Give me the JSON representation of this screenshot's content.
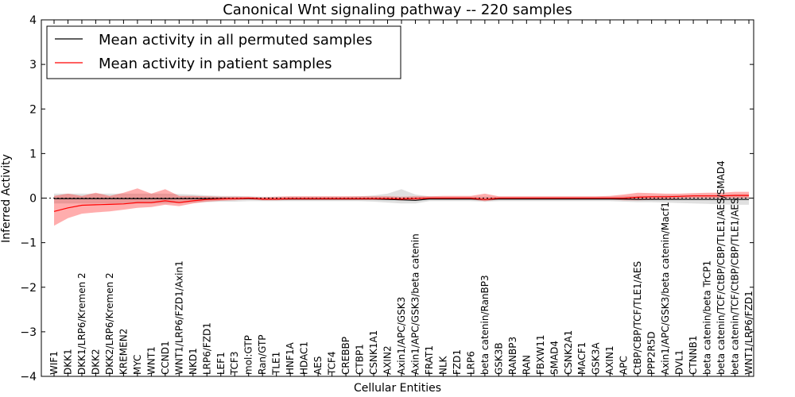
{
  "chart_data": {
    "type": "line",
    "title": "Canonical Wnt signaling pathway -- 220 samples",
    "xlabel": "Cellular Entities",
    "ylabel": "Inferred Activity",
    "ylim": [
      -4,
      4
    ],
    "yticks": [
      -4,
      -3,
      -2,
      -1,
      0,
      1,
      2,
      3,
      4
    ],
    "ytick_labels": [
      "−4",
      "−3",
      "−2",
      "−1",
      "0",
      "1",
      "2",
      "3",
      "4"
    ],
    "legend_position": "top-left",
    "categories": [
      "WIF1",
      "DKK1",
      "DKK1/LRP6/Kremen 2",
      "DKK2",
      "DKK2/LRP6/Kremen 2",
      "KREMEN2",
      "MYC",
      "WNT1",
      "CCND1",
      "WNT1/LRP6/FZD1/Axin1",
      "NKD1",
      "LRP6/FZD1",
      "LEF1",
      "TCF3",
      "mol:GTP",
      "Ran/GTP",
      "TLE1",
      "HNF1A",
      "HDAC1",
      "AES",
      "TCF4",
      "CREBBP",
      "CTBP1",
      "CSNK1A1",
      "AXIN2",
      "Axin1/APC/GSK3",
      "Axin1/APC/GSK3/beta catenin",
      "FRAT1",
      "NLK",
      "FZD1",
      "LRP6",
      "beta catenin/RanBP3",
      "GSK3B",
      "RANBP3",
      "RAN",
      "FBXW11",
      "SMAD4",
      "CSNK2A1",
      "MACF1",
      "GSK3A",
      "AXIN1",
      "APC",
      "CtBP/CBP/TCF/TLE1/AES",
      "PPP2R5D",
      "Axin1/APC/GSK3/beta catenin/Macf1",
      "DVL1",
      "CTNNB1",
      "beta catenin/beta TrCP1",
      "beta catenin/TCF/CtBP/CBP/TLE1/AES/SMAD4",
      "beta catenin/TCF/CtBP/CBP/TLE1/AES",
      "WNT1/LRP6/FZD1"
    ],
    "series": [
      {
        "name": "Mean activity in all permuted samples",
        "color": "#000000",
        "band_color": "#bbbbbb",
        "values": [
          -0.01,
          -0.01,
          -0.01,
          -0.01,
          -0.01,
          -0.01,
          -0.01,
          -0.01,
          -0.01,
          -0.01,
          -0.01,
          -0.01,
          -0.01,
          -0.01,
          -0.01,
          -0.02,
          -0.02,
          -0.02,
          -0.02,
          -0.02,
          -0.02,
          -0.02,
          -0.02,
          -0.02,
          -0.03,
          -0.04,
          -0.05,
          -0.02,
          -0.02,
          -0.02,
          -0.02,
          -0.03,
          -0.02,
          -0.02,
          -0.02,
          -0.02,
          -0.02,
          -0.02,
          -0.02,
          -0.02,
          -0.02,
          -0.02,
          -0.03,
          -0.03,
          -0.03,
          -0.03,
          -0.03,
          -0.03,
          -0.03,
          -0.03,
          -0.03
        ],
        "lower": [
          -0.12,
          -0.12,
          -0.12,
          -0.12,
          -0.12,
          -0.12,
          -0.12,
          -0.12,
          -0.12,
          -0.11,
          -0.1,
          -0.09,
          -0.08,
          -0.08,
          -0.07,
          -0.07,
          -0.07,
          -0.07,
          -0.07,
          -0.07,
          -0.07,
          -0.07,
          -0.07,
          -0.08,
          -0.1,
          -0.12,
          -0.12,
          -0.07,
          -0.07,
          -0.07,
          -0.07,
          -0.08,
          -0.07,
          -0.07,
          -0.07,
          -0.07,
          -0.07,
          -0.07,
          -0.07,
          -0.07,
          -0.07,
          -0.08,
          -0.09,
          -0.09,
          -0.1,
          -0.11,
          -0.12,
          -0.13,
          -0.14,
          -0.15,
          -0.15
        ],
        "upper": [
          0.1,
          0.1,
          0.1,
          0.1,
          0.1,
          0.1,
          0.1,
          0.1,
          0.1,
          0.09,
          0.08,
          0.06,
          0.05,
          0.05,
          0.04,
          0.03,
          0.03,
          0.03,
          0.03,
          0.03,
          0.03,
          0.03,
          0.04,
          0.06,
          0.1,
          0.2,
          0.08,
          0.04,
          0.03,
          0.03,
          0.03,
          0.03,
          0.03,
          0.03,
          0.03,
          0.03,
          0.03,
          0.03,
          0.03,
          0.03,
          0.03,
          0.04,
          0.05,
          0.05,
          0.06,
          0.06,
          0.07,
          0.07,
          0.07,
          0.08,
          0.08
        ]
      },
      {
        "name": "Mean activity in patient samples",
        "color": "#ff0000",
        "band_color": "#ff0000",
        "values": [
          -0.3,
          -0.22,
          -0.16,
          -0.15,
          -0.14,
          -0.13,
          -0.1,
          -0.1,
          -0.06,
          -0.1,
          -0.06,
          -0.03,
          -0.02,
          -0.01,
          0.0,
          -0.02,
          -0.02,
          -0.01,
          -0.01,
          -0.01,
          -0.01,
          -0.01,
          -0.01,
          -0.01,
          -0.01,
          -0.02,
          -0.01,
          0.0,
          0.0,
          0.0,
          0.0,
          -0.03,
          0.0,
          0.0,
          0.0,
          0.0,
          0.0,
          0.0,
          0.0,
          0.0,
          0.0,
          0.0,
          0.02,
          0.03,
          0.03,
          0.04,
          0.05,
          0.05,
          0.05,
          0.06,
          0.06
        ],
        "lower": [
          -0.62,
          -0.45,
          -0.35,
          -0.32,
          -0.3,
          -0.26,
          -0.22,
          -0.2,
          -0.15,
          -0.18,
          -0.12,
          -0.08,
          -0.06,
          -0.05,
          -0.03,
          -0.05,
          -0.05,
          -0.04,
          -0.04,
          -0.04,
          -0.04,
          -0.04,
          -0.04,
          -0.04,
          -0.04,
          -0.05,
          -0.04,
          -0.03,
          -0.03,
          -0.03,
          -0.03,
          -0.07,
          -0.03,
          -0.03,
          -0.03,
          -0.03,
          -0.03,
          -0.03,
          -0.03,
          -0.03,
          -0.03,
          -0.05,
          -0.05,
          -0.04,
          -0.02,
          -0.01,
          0.0,
          0.0,
          0.0,
          0.0,
          0.0
        ],
        "upper": [
          0.05,
          0.1,
          0.05,
          0.12,
          0.05,
          0.12,
          0.22,
          0.1,
          0.2,
          0.05,
          0.05,
          0.04,
          0.03,
          0.03,
          0.03,
          0.02,
          0.03,
          0.04,
          0.04,
          0.04,
          0.04,
          0.04,
          0.04,
          0.04,
          0.04,
          0.03,
          0.04,
          0.04,
          0.05,
          0.05,
          0.05,
          0.1,
          0.04,
          0.04,
          0.04,
          0.04,
          0.04,
          0.04,
          0.04,
          0.04,
          0.05,
          0.08,
          0.12,
          0.11,
          0.1,
          0.1,
          0.11,
          0.12,
          0.12,
          0.14,
          0.14
        ]
      }
    ]
  }
}
